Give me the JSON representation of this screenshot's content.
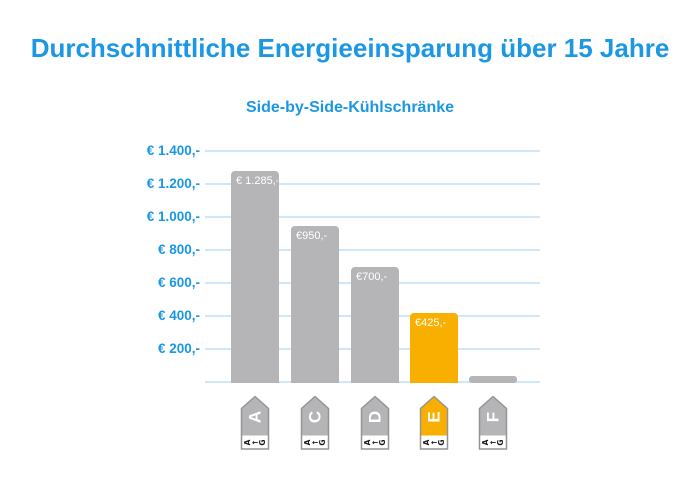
{
  "title": "Durchschnittliche Energieeinsparung über 15 Jahre",
  "subtitle": "Side-by-Side-Kühlschränke",
  "colors": {
    "accent_blue": "#1b97e4",
    "bar_gray": "#b5b5b7",
    "bar_orange": "#f9af00",
    "gridline": "#cfe7f8",
    "bar_label_text": "#ffffff",
    "tag_outline": "#949494",
    "tag_letter": "#ffffff",
    "tag_scale_text": "#1a1a1a"
  },
  "y_axis": {
    "tick_labels": [
      "€ 1.400,-",
      "€ 1.200,-",
      "€ 1.000,-",
      "€ 800,-",
      "€ 600,-",
      "€ 400,-",
      "€ 200,-"
    ],
    "max": 1400,
    "step": 200
  },
  "chart_data": {
    "type": "bar",
    "title": "Durchschnittliche Energieeinsparung über 15 Jahre",
    "subtitle": "Side-by-Side-Kühlschränke",
    "categories": [
      "A",
      "C",
      "D",
      "E",
      "F"
    ],
    "values": [
      1285,
      950,
      700,
      425,
      40
    ],
    "bar_labels": [
      "€ 1.285,-",
      "€950,-",
      "€700,-",
      "€425,-",
      ""
    ],
    "highlighted_category": "E",
    "xlabel": "",
    "ylabel": "",
    "ylim": [
      0,
      1400
    ],
    "ytick_step": 200,
    "grid": true,
    "legend": false,
    "note": "x categories rendered as EU energy-efficiency class tags"
  },
  "x_axis": {
    "scale_chars": [
      "A",
      "←",
      "G"
    ],
    "tags": [
      {
        "letter": "A",
        "highlight": false
      },
      {
        "letter": "C",
        "highlight": false
      },
      {
        "letter": "D",
        "highlight": false
      },
      {
        "letter": "E",
        "highlight": true
      },
      {
        "letter": "F",
        "highlight": false
      }
    ]
  }
}
